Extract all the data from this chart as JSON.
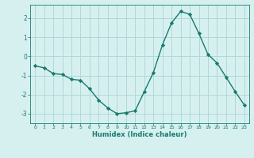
{
  "x": [
    0,
    1,
    2,
    3,
    4,
    5,
    6,
    7,
    8,
    9,
    10,
    11,
    12,
    13,
    14,
    15,
    16,
    17,
    18,
    19,
    20,
    21,
    22,
    23
  ],
  "y": [
    -0.5,
    -0.6,
    -0.9,
    -0.95,
    -1.2,
    -1.25,
    -1.7,
    -2.3,
    -2.7,
    -3.0,
    -2.95,
    -2.85,
    -1.85,
    -0.85,
    0.6,
    1.75,
    2.35,
    2.2,
    1.2,
    0.1,
    -0.35,
    -1.1,
    -1.85,
    -2.55
  ],
  "line_color": "#1a7a6e",
  "marker": "D",
  "marker_size": 2.2,
  "bg_color": "#d6f0f0",
  "grid_color": "#b0d8d8",
  "tick_color": "#1a7a6e",
  "label_color": "#1a7a6e",
  "xlabel": "Humidex (Indice chaleur)",
  "ylim": [
    -3.5,
    2.7
  ],
  "xlim": [
    -0.5,
    23.5
  ],
  "yticks": [
    -3,
    -2,
    -1,
    0,
    1,
    2
  ],
  "xticks": [
    0,
    1,
    2,
    3,
    4,
    5,
    6,
    7,
    8,
    9,
    10,
    11,
    12,
    13,
    14,
    15,
    16,
    17,
    18,
    19,
    20,
    21,
    22,
    23
  ]
}
